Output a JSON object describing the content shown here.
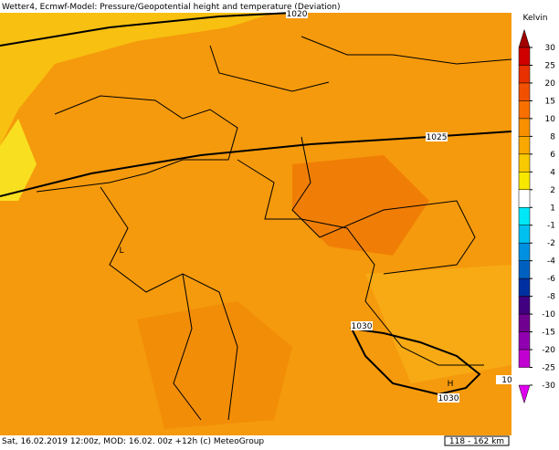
{
  "header": {
    "title": "Wetter4, Ecmwf-Model: Pressure/Geopotential height and temperature (Deviation)"
  },
  "footer": {
    "text": "Sat, 16.02.2019 12:00z, MOD: 16.02. 00z +12h (c) MeteoGroup",
    "scale": "118 - 162 km"
  },
  "legend": {
    "title": "Kelvin",
    "ticks": [
      30,
      25,
      20,
      15,
      10,
      8,
      6,
      4,
      2,
      1,
      -1,
      -2,
      -4,
      -6,
      -8,
      -10,
      -15,
      -20,
      -25,
      -30
    ],
    "colors": [
      "#a00000",
      "#d00000",
      "#e83000",
      "#f05000",
      "#f87000",
      "#f89000",
      "#f8a800",
      "#f8c800",
      "#f8e800",
      "#ffffff",
      "#00e8f8",
      "#00c0f0",
      "#0090e0",
      "#0060c0",
      "#0030a0",
      "#400080",
      "#700090",
      "#9000b0",
      "#c000d0",
      "#e000f0"
    ]
  },
  "map": {
    "annotations": [
      "1020",
      "1025",
      "1030",
      "1030",
      "10",
      "H",
      "L"
    ]
  }
}
